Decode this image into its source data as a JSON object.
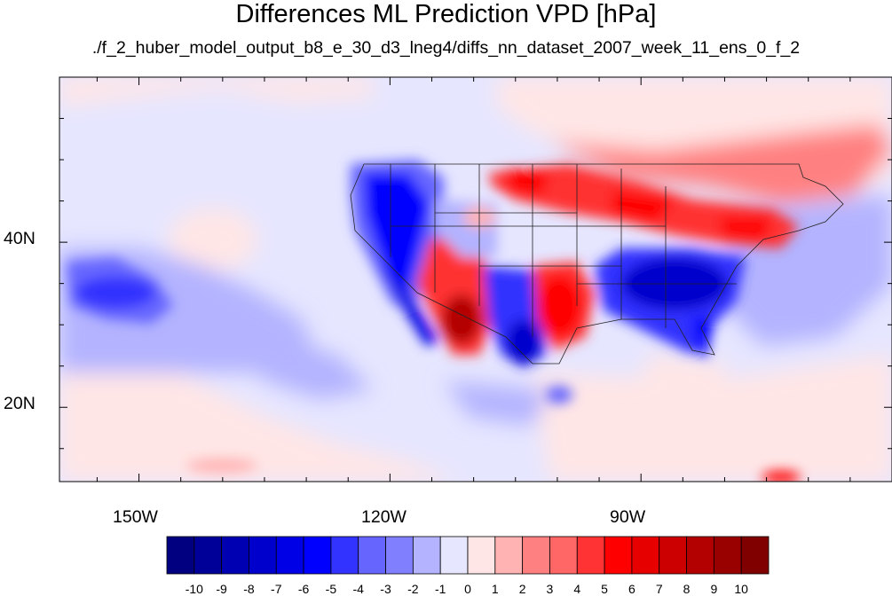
{
  "title": "Differences ML Prediction VPD [hPa]",
  "subtitle": "./f_2_huber_model_output_b8_e_30_d3_lneg4/diffs_nn_dataset_2007_week_11_ens_0_f_2",
  "axes": {
    "lon_labels": [
      "150W",
      "120W",
      "90W"
    ],
    "lat_labels": [
      "40N",
      "20N"
    ],
    "lon_range": [
      -159.5,
      -60
    ],
    "lat_range": [
      11,
      60
    ]
  },
  "colorbar": {
    "labels": [
      "-10",
      "-9",
      "-8",
      "-7",
      "-6",
      "-5",
      "-4",
      "-3",
      "-2",
      "-1",
      "0",
      "1",
      "2",
      "3",
      "4",
      "5",
      "6",
      "7",
      "8",
      "9",
      "10"
    ],
    "colors": [
      "#000080",
      "#000099",
      "#0000b3",
      "#0000cc",
      "#0000e6",
      "#0000ff",
      "#3333ff",
      "#6666ff",
      "#8080ff",
      "#b3b3ff",
      "#e6e6ff",
      "#ffe6e6",
      "#ffb3b3",
      "#ff8080",
      "#ff6666",
      "#ff3333",
      "#ff0000",
      "#e60000",
      "#cc0000",
      "#b30000",
      "#990000",
      "#800000"
    ]
  },
  "features": [
    {
      "name": "pacific-blue-band",
      "value": -3,
      "lon": -152,
      "lat": 34
    },
    {
      "name": "pacific-pink-patch",
      "value": 1,
      "lon": -137,
      "lat": 39
    },
    {
      "name": "west-coast-blue",
      "value": -6,
      "lon": -119,
      "lat": 40
    },
    {
      "name": "southwest-red",
      "value": 8,
      "lon": -111,
      "lat": 32
    },
    {
      "name": "new-mexico-blue",
      "value": -7,
      "lon": -105,
      "lat": 31
    },
    {
      "name": "texas-red",
      "value": 6,
      "lon": -99,
      "lat": 33
    },
    {
      "name": "southeast-blue",
      "value": -8,
      "lon": -87,
      "lat": 34
    },
    {
      "name": "great-lakes-red",
      "value": 5,
      "lon": -88,
      "lat": 45
    },
    {
      "name": "canada-red",
      "value": 3,
      "lon": -80,
      "lat": 52
    },
    {
      "name": "atlantic-blue",
      "value": -3,
      "lon": -70,
      "lat": 36
    }
  ]
}
